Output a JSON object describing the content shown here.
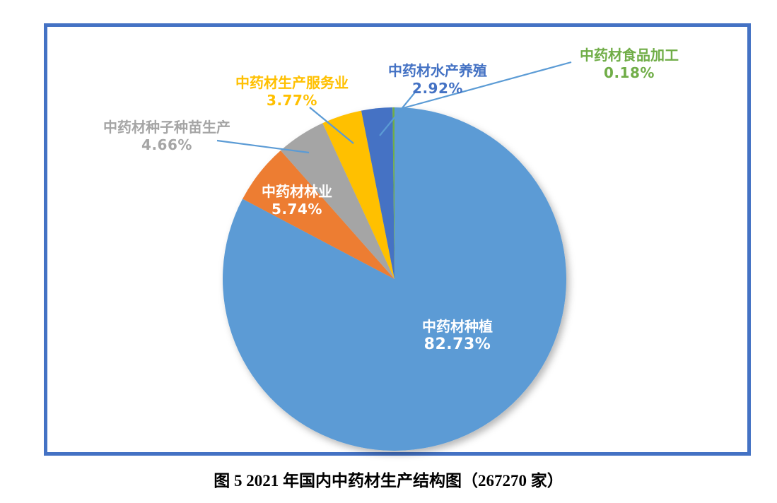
{
  "figure": {
    "caption": "图 5  2021 年国内中药材生产结构图（267270 家）"
  },
  "chart_data": {
    "type": "pie",
    "direction": "clockwise",
    "start_angle_deg": 0,
    "legend": "none",
    "leader_line_color": "#5B9BD5",
    "frame_border_color": "#4472C4",
    "slices": [
      {
        "label": "中药材种植",
        "value": 82.73,
        "pct_label": "82.73%",
        "color": "#5B9BD5",
        "label_placement": "inside"
      },
      {
        "label": "中药材林业",
        "value": 5.74,
        "pct_label": "5.74%",
        "color": "#ED7D31",
        "label_placement": "inside"
      },
      {
        "label": "中药材种子种苗生产",
        "value": 4.66,
        "pct_label": "4.66%",
        "color": "#A5A5A5",
        "label_placement": "outside"
      },
      {
        "label": "中药材生产服务业",
        "value": 3.77,
        "pct_label": "3.77%",
        "color": "#FFC000",
        "label_placement": "outside"
      },
      {
        "label": "中药材水产养殖",
        "value": 2.92,
        "pct_label": "2.92%",
        "color": "#4472C4",
        "label_placement": "outside"
      },
      {
        "label": "中药材食品加工",
        "value": 0.18,
        "pct_label": "0.18%",
        "color": "#70AD47",
        "label_placement": "outside"
      }
    ]
  }
}
